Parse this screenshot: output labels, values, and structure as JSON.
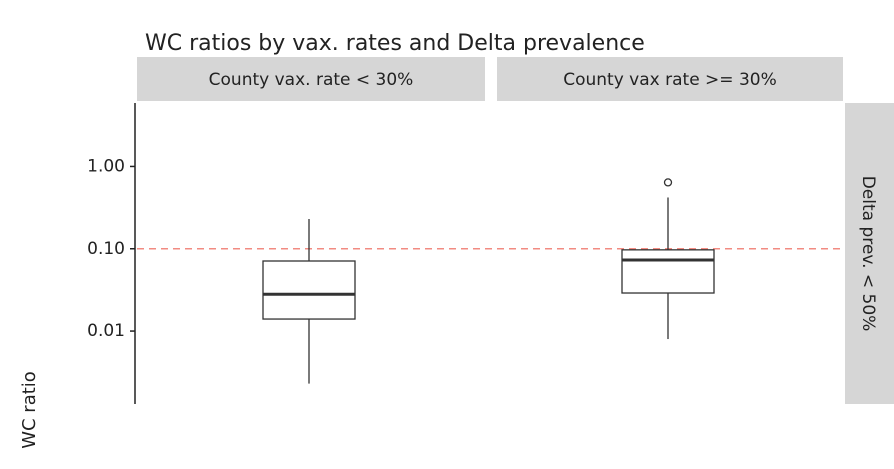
{
  "chart_data": {
    "type": "box",
    "title": "WC ratios by vax. rates and Delta prevalence",
    "ylabel": "WC ratio",
    "categories": [
      "County vax. rate < 30%",
      "County vax rate >= 30%"
    ],
    "row_facet": "Delta prev. < 50%",
    "boxes": [
      {
        "whisker_low": 0.0023,
        "q1": 0.014,
        "median": 0.028,
        "q3": 0.071,
        "whisker_high": 0.23,
        "outliers": []
      },
      {
        "whisker_low": 0.008,
        "q1": 0.029,
        "median": 0.073,
        "q3": 0.097,
        "whisker_high": 0.42,
        "outliers": [
          0.64
        ]
      }
    ],
    "log_y": true,
    "ylim": [
      0.0013,
      5.9
    ],
    "yticks": [
      {
        "value": 1,
        "label": "1.00"
      },
      {
        "value": 0.1,
        "label": "0.10"
      },
      {
        "value": 0.01,
        "label": "0.01"
      }
    ],
    "hline": {
      "value": 0.1,
      "color": "#f28b82"
    },
    "box_color": "#333333",
    "strip_color": "#d6d6d6"
  }
}
